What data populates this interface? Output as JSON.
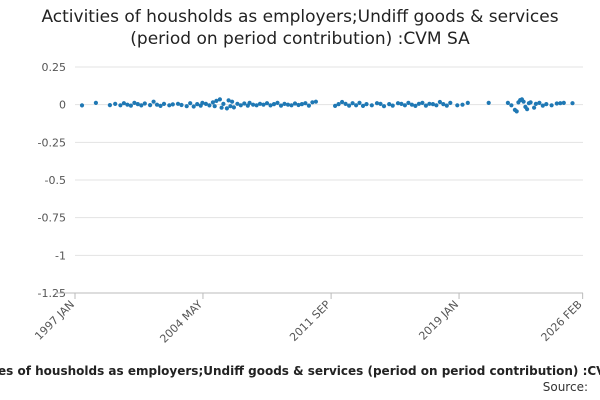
{
  "chart_data": {
    "type": "scatter",
    "title_line1": "Activities of housholds as employers;Undiff goods & services",
    "title_line2": "(period on period contribution) :CVM SA",
    "xlabel": "Activities of housholds as employers;Undiff goods & services (period on period contribution) :CVM SA",
    "source_label": "Source:",
    "ylim": [
      -1.25,
      0.25
    ],
    "y_ticks": [
      {
        "value": 0.25,
        "label": "0.25"
      },
      {
        "value": 0,
        "label": "0"
      },
      {
        "value": -0.25,
        "label": "-0.25"
      },
      {
        "value": -0.5,
        "label": "-0.5"
      },
      {
        "value": -0.75,
        "label": "-0.75"
      },
      {
        "value": -1,
        "label": "-1"
      },
      {
        "value": -1.25,
        "label": "-1.25"
      }
    ],
    "xlim": [
      1997.0,
      2026.1
    ],
    "x_ticks": [
      {
        "value": 1997.0,
        "label": "1997 JAN"
      },
      {
        "value": 2004.33,
        "label": "2004 MAY"
      },
      {
        "value": 2011.67,
        "label": "2011 SEP"
      },
      {
        "value": 2019.0,
        "label": "2019 JAN"
      },
      {
        "value": 2026.08,
        "label": "2026 FEB"
      }
    ],
    "series": [
      {
        "name": "Activities of housholds as employers;Undiff goods & services (period on period contribution) :CVM SA",
        "color": "#1f78b4",
        "points": [
          [
            1997.4,
            -0.005
          ],
          [
            1998.2,
            0.012
          ],
          [
            1999.0,
            -0.003
          ],
          [
            1999.3,
            0.005
          ],
          [
            1999.6,
            -0.004
          ],
          [
            1999.8,
            0.01
          ],
          [
            2000.0,
            0.0
          ],
          [
            2000.2,
            -0.006
          ],
          [
            2000.4,
            0.012
          ],
          [
            2000.6,
            0.004
          ],
          [
            2000.8,
            -0.005
          ],
          [
            2001.0,
            0.008
          ],
          [
            2001.3,
            -0.003
          ],
          [
            2001.5,
            0.02
          ],
          [
            2001.7,
            0.0
          ],
          [
            2001.9,
            -0.008
          ],
          [
            2002.1,
            0.005
          ],
          [
            2002.4,
            -0.004
          ],
          [
            2002.6,
            0.002
          ],
          [
            2002.9,
            0.006
          ],
          [
            2003.1,
            -0.002
          ],
          [
            2003.4,
            -0.01
          ],
          [
            2003.6,
            0.01
          ],
          [
            2003.8,
            -0.012
          ],
          [
            2004.0,
            0.004
          ],
          [
            2004.2,
            -0.006
          ],
          [
            2004.3,
            0.012
          ],
          [
            2004.5,
            0.005
          ],
          [
            2004.7,
            -0.005
          ],
          [
            2004.9,
            0.015
          ],
          [
            2005.0,
            -0.01
          ],
          [
            2005.1,
            0.025
          ],
          [
            2005.3,
            0.035
          ],
          [
            2005.4,
            -0.02
          ],
          [
            2005.5,
            0.005
          ],
          [
            2005.7,
            -0.025
          ],
          [
            2005.8,
            0.028
          ],
          [
            2005.9,
            -0.01
          ],
          [
            2006.0,
            0.02
          ],
          [
            2006.1,
            -0.018
          ],
          [
            2006.3,
            0.006
          ],
          [
            2006.5,
            -0.004
          ],
          [
            2006.7,
            0.008
          ],
          [
            2006.9,
            -0.006
          ],
          [
            2007.0,
            0.012
          ],
          [
            2007.2,
            0.0
          ],
          [
            2007.4,
            -0.004
          ],
          [
            2007.6,
            0.006
          ],
          [
            2007.8,
            0.0
          ],
          [
            2008.0,
            0.01
          ],
          [
            2008.2,
            -0.005
          ],
          [
            2008.4,
            0.004
          ],
          [
            2008.6,
            0.012
          ],
          [
            2008.8,
            -0.006
          ],
          [
            2009.0,
            0.005
          ],
          [
            2009.2,
            0.0
          ],
          [
            2009.4,
            -0.004
          ],
          [
            2009.6,
            0.008
          ],
          [
            2009.8,
            -0.002
          ],
          [
            2010.0,
            0.004
          ],
          [
            2010.2,
            0.01
          ],
          [
            2010.4,
            -0.006
          ],
          [
            2010.6,
            0.016
          ],
          [
            2010.8,
            0.02
          ],
          [
            2011.9,
            -0.008
          ],
          [
            2012.1,
            0.004
          ],
          [
            2012.3,
            0.018
          ],
          [
            2012.5,
            0.005
          ],
          [
            2012.7,
            -0.006
          ],
          [
            2012.9,
            0.01
          ],
          [
            2013.1,
            -0.004
          ],
          [
            2013.3,
            0.012
          ],
          [
            2013.5,
            -0.008
          ],
          [
            2013.7,
            0.004
          ],
          [
            2014.0,
            -0.004
          ],
          [
            2014.3,
            0.01
          ],
          [
            2014.5,
            0.005
          ],
          [
            2014.7,
            -0.01
          ],
          [
            2015.0,
            0.004
          ],
          [
            2015.2,
            -0.006
          ],
          [
            2015.5,
            0.01
          ],
          [
            2015.7,
            0.005
          ],
          [
            2015.9,
            -0.004
          ],
          [
            2016.1,
            0.012
          ],
          [
            2016.3,
            0.0
          ],
          [
            2016.5,
            -0.008
          ],
          [
            2016.7,
            0.006
          ],
          [
            2016.9,
            0.012
          ],
          [
            2017.1,
            -0.006
          ],
          [
            2017.3,
            0.006
          ],
          [
            2017.5,
            0.004
          ],
          [
            2017.7,
            -0.004
          ],
          [
            2017.9,
            0.018
          ],
          [
            2018.1,
            0.004
          ],
          [
            2018.3,
            -0.006
          ],
          [
            2018.5,
            0.012
          ],
          [
            2018.9,
            -0.004
          ],
          [
            2019.2,
            0.0
          ],
          [
            2019.5,
            0.012
          ],
          [
            2020.7,
            0.012
          ],
          [
            2021.8,
            0.012
          ],
          [
            2022.0,
            -0.004
          ],
          [
            2022.2,
            -0.035
          ],
          [
            2022.3,
            -0.045
          ],
          [
            2022.4,
            0.015
          ],
          [
            2022.5,
            0.03
          ],
          [
            2022.6,
            0.035
          ],
          [
            2022.7,
            0.02
          ],
          [
            2022.8,
            -0.015
          ],
          [
            2022.9,
            -0.03
          ],
          [
            2023.0,
            0.01
          ],
          [
            2023.1,
            0.015
          ],
          [
            2023.3,
            -0.02
          ],
          [
            2023.4,
            0.005
          ],
          [
            2023.6,
            0.012
          ],
          [
            2023.8,
            -0.006
          ],
          [
            2024.0,
            0.004
          ],
          [
            2024.3,
            -0.004
          ],
          [
            2024.6,
            0.008
          ],
          [
            2024.8,
            0.01
          ],
          [
            2025.0,
            0.012
          ],
          [
            2025.5,
            0.01
          ]
        ]
      }
    ]
  }
}
